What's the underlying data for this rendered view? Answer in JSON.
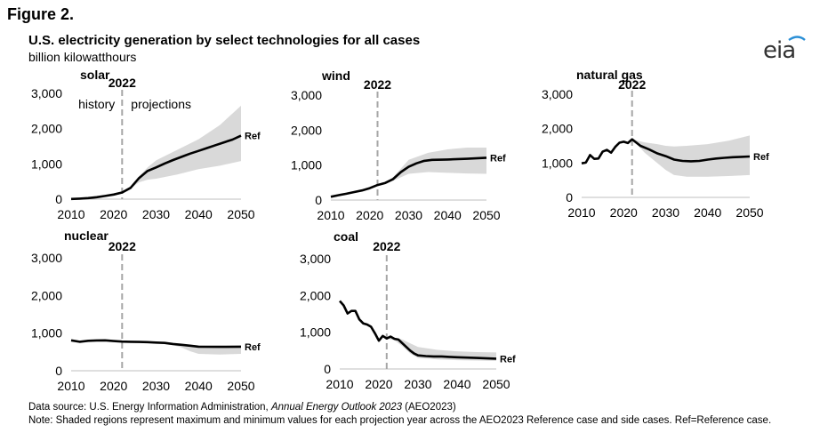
{
  "figure_label": "Figure 2.",
  "title": "U.S. electricity generation by select technologies for all cases",
  "subtitle": "billion kilowatthours",
  "logo_text": "eia",
  "source_prefix": "Data source: U.S. Energy Information Administration, ",
  "source_italic": "Annual Energy Outlook 2023",
  "source_suffix": " (AEO2023)",
  "note": "Note: Shaded regions represent maximum and minimum values for each projection year across the AEO2023 Reference case and side cases. Ref=Reference case.",
  "colors": {
    "line": "#000000",
    "band": "#d9d9d9",
    "divider": "#a6a6a6",
    "logo_accent": "#2a8fd6"
  },
  "chart_data": [
    {
      "type": "area",
      "title": "solar",
      "x_ticks": [
        "2010",
        "2020",
        "2030",
        "2040",
        "2050"
      ],
      "y_ticks": [
        "0",
        "1,000",
        "2,000",
        "3,000"
      ],
      "xlim": [
        2010,
        2050
      ],
      "ylim": [
        0,
        3000
      ],
      "marker_label": "2022",
      "marker_year": 2022,
      "annotations": [
        "history",
        "projections"
      ],
      "series_label": "Ref",
      "ref": {
        "x": [
          2010,
          2012,
          2014,
          2016,
          2018,
          2020,
          2022,
          2024,
          2026,
          2028,
          2030,
          2032,
          2034,
          2036,
          2038,
          2040,
          2042,
          2044,
          2046,
          2048,
          2050
        ],
        "y": [
          5,
          15,
          30,
          55,
          90,
          130,
          190,
          320,
          600,
          800,
          900,
          1010,
          1110,
          1200,
          1290,
          1370,
          1450,
          1530,
          1610,
          1690,
          1800
        ]
      },
      "band": {
        "x": [
          2022,
          2024,
          2026,
          2028,
          2030,
          2035,
          2040,
          2045,
          2050
        ],
        "high": [
          190,
          330,
          650,
          900,
          1100,
          1400,
          1700,
          2100,
          2650
        ],
        "low": [
          190,
          300,
          480,
          550,
          580,
          700,
          850,
          950,
          1080
        ]
      }
    },
    {
      "type": "area",
      "title": "wind",
      "x_ticks": [
        "2010",
        "2020",
        "2030",
        "2040",
        "2050"
      ],
      "y_ticks": [
        "0",
        "1,000",
        "2,000",
        "3,000"
      ],
      "xlim": [
        2010,
        2050
      ],
      "ylim": [
        0,
        3000
      ],
      "marker_label": "2022",
      "marker_year": 2022,
      "series_label": "Ref",
      "ref": {
        "x": [
          2010,
          2012,
          2014,
          2016,
          2018,
          2020,
          2022,
          2024,
          2026,
          2028,
          2030,
          2032,
          2034,
          2036,
          2040,
          2045,
          2050
        ],
        "y": [
          95,
          140,
          180,
          230,
          275,
          340,
          430,
          490,
          600,
          800,
          950,
          1050,
          1120,
          1150,
          1160,
          1180,
          1210
        ]
      },
      "band": {
        "x": [
          2022,
          2024,
          2026,
          2028,
          2030,
          2035,
          2040,
          2045,
          2050
        ],
        "high": [
          430,
          500,
          650,
          900,
          1150,
          1350,
          1450,
          1500,
          1500
        ],
        "low": [
          430,
          470,
          550,
          650,
          750,
          800,
          780,
          760,
          750
        ]
      }
    },
    {
      "type": "area",
      "title": "natural gas",
      "x_ticks": [
        "2010",
        "2020",
        "2030",
        "2040",
        "2050"
      ],
      "y_ticks": [
        "0",
        "1,000",
        "2,000",
        "3,000"
      ],
      "xlim": [
        2010,
        2050
      ],
      "ylim": [
        0,
        3000
      ],
      "marker_label": "2022",
      "marker_year": 2022,
      "series_label": "Ref",
      "ref": {
        "x": [
          2010,
          2011,
          2012,
          2013,
          2014,
          2015,
          2016,
          2017,
          2018,
          2019,
          2020,
          2021,
          2022,
          2024,
          2026,
          2028,
          2030,
          2032,
          2034,
          2036,
          2038,
          2040,
          2042,
          2044,
          2046,
          2048,
          2050
        ],
        "y": [
          990,
          1010,
          1230,
          1120,
          1130,
          1330,
          1380,
          1300,
          1470,
          1590,
          1620,
          1580,
          1690,
          1500,
          1400,
          1280,
          1200,
          1100,
          1060,
          1050,
          1060,
          1100,
          1130,
          1150,
          1170,
          1180,
          1190
        ]
      },
      "band": {
        "x": [
          2022,
          2025,
          2028,
          2030,
          2032,
          2035,
          2040,
          2045,
          2050
        ],
        "high": [
          1690,
          1600,
          1550,
          1500,
          1480,
          1500,
          1550,
          1650,
          1800
        ],
        "low": [
          1690,
          1300,
          1000,
          800,
          650,
          600,
          600,
          620,
          650
        ]
      }
    },
    {
      "type": "area",
      "title": "nuclear",
      "x_ticks": [
        "2010",
        "2020",
        "2030",
        "2040",
        "2050"
      ],
      "y_ticks": [
        "0",
        "1,000",
        "2,000",
        "3,000"
      ],
      "xlim": [
        2010,
        2050
      ],
      "ylim": [
        0,
        3000
      ],
      "marker_label": "2022",
      "marker_year": 2022,
      "series_label": "Ref",
      "ref": {
        "x": [
          2010,
          2012,
          2014,
          2016,
          2018,
          2020,
          2022,
          2024,
          2026,
          2028,
          2030,
          2032,
          2034,
          2036,
          2038,
          2040,
          2045,
          2050
        ],
        "y": [
          807,
          770,
          797,
          805,
          807,
          790,
          775,
          770,
          765,
          760,
          750,
          740,
          710,
          690,
          665,
          640,
          635,
          640
        ]
      },
      "band": {
        "x": [
          2022,
          2026,
          2030,
          2034,
          2036,
          2038,
          2040,
          2045,
          2050
        ],
        "high": [
          775,
          770,
          760,
          730,
          710,
          690,
          670,
          650,
          650
        ],
        "low": [
          775,
          760,
          740,
          680,
          620,
          520,
          450,
          430,
          450
        ]
      }
    },
    {
      "type": "area",
      "title": "coal",
      "x_ticks": [
        "2010",
        "2020",
        "2030",
        "2040",
        "2050"
      ],
      "y_ticks": [
        "0",
        "1,000",
        "2,000",
        "3,000"
      ],
      "xlim": [
        2010,
        2050
      ],
      "ylim": [
        0,
        3000
      ],
      "marker_label": "2022",
      "marker_year": 2022,
      "series_label": "Ref",
      "ref": {
        "x": [
          2010,
          2011,
          2012,
          2013,
          2014,
          2015,
          2016,
          2017,
          2018,
          2019,
          2020,
          2021,
          2022,
          2023,
          2024,
          2025,
          2026,
          2027,
          2028,
          2029,
          2030,
          2032,
          2034,
          2036,
          2038,
          2040,
          2045,
          2050
        ],
        "y": [
          1850,
          1730,
          1510,
          1580,
          1580,
          1350,
          1240,
          1210,
          1150,
          970,
          770,
          900,
          830,
          880,
          820,
          800,
          700,
          600,
          500,
          420,
          370,
          350,
          340,
          340,
          330,
          320,
          300,
          280
        ]
      },
      "band": {
        "x": [
          2022,
          2024,
          2026,
          2028,
          2030,
          2035,
          2040,
          2045,
          2050
        ],
        "high": [
          830,
          850,
          800,
          700,
          600,
          520,
          480,
          460,
          450
        ],
        "low": [
          830,
          780,
          620,
          420,
          300,
          260,
          240,
          230,
          220
        ]
      }
    }
  ]
}
